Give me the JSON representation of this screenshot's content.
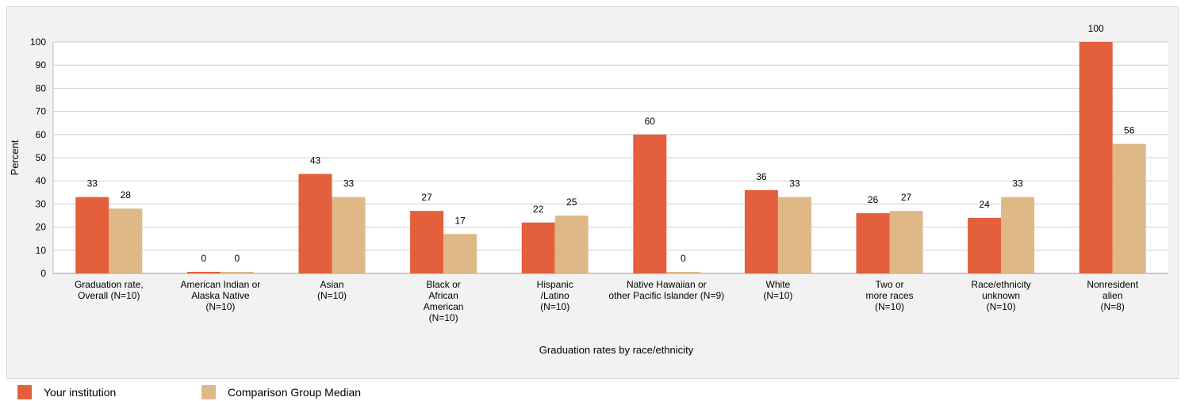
{
  "chart_data": {
    "type": "bar",
    "xlabel": "Graduation rates by race/ethnicity",
    "ylabel": "Percent",
    "ylim": [
      0,
      100
    ],
    "yticks": [
      0,
      10,
      20,
      30,
      40,
      50,
      60,
      70,
      80,
      90,
      100
    ],
    "grid": true,
    "legend_position": "bottom-left",
    "categories": [
      [
        "Graduation rate,",
        "Overall (N=10)"
      ],
      [
        "American Indian or",
        "Alaska Native",
        "(N=10)"
      ],
      [
        "Asian",
        "(N=10)"
      ],
      [
        "Black or",
        "African",
        "American",
        "(N=10)"
      ],
      [
        "Hispanic",
        "/Latino",
        "(N=10)"
      ],
      [
        "Native Hawaiian or",
        "other Pacific Islander (N=9)"
      ],
      [
        "White",
        "(N=10)"
      ],
      [
        "Two or",
        "more races",
        "(N=10)"
      ],
      [
        "Race/ethnicity",
        "unknown",
        "(N=10)"
      ],
      [
        "Nonresident",
        "alien",
        "(N=8)"
      ]
    ],
    "series": [
      {
        "name": "Your institution",
        "color": "#e45f3c",
        "values": [
          33,
          0,
          43,
          27,
          22,
          60,
          36,
          26,
          24,
          100
        ]
      },
      {
        "name": "Comparison Group Median",
        "color": "#deb887",
        "values": [
          28,
          0,
          33,
          17,
          25,
          0,
          33,
          27,
          33,
          56
        ]
      }
    ]
  }
}
